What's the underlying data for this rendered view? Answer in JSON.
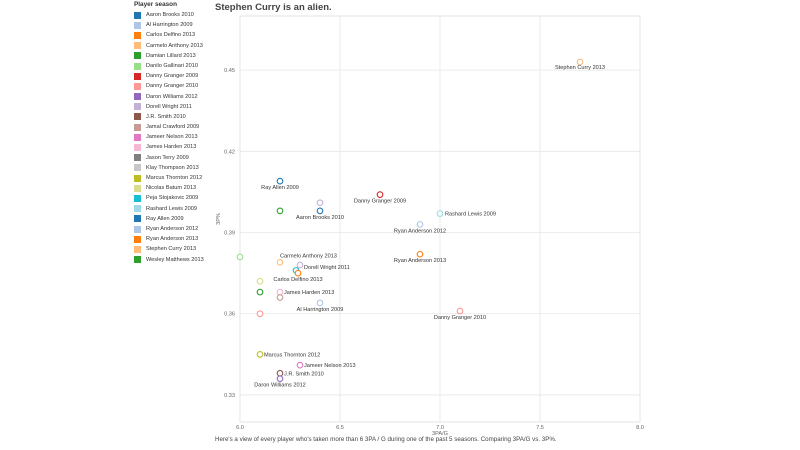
{
  "title": "Stephen Curry is an alien.",
  "caption": "Here's a view of every player who's taken more than 6 3PA / G during one of the past 5 seasons. Comparing 3PA/G vs. 3P%.",
  "legend": {
    "title": "Player season",
    "items": [
      {
        "label": "Aaron Brooks 2010",
        "color": "#1f77b4"
      },
      {
        "label": "Al Harrington 2009",
        "color": "#aec7e8"
      },
      {
        "label": "Carlos Delfino 2013",
        "color": "#ff7f0e"
      },
      {
        "label": "Carmelo Anthony 2013",
        "color": "#ffbb78"
      },
      {
        "label": "Damian Lillard 2013",
        "color": "#2ca02c"
      },
      {
        "label": "Danilo Gallinari 2010",
        "color": "#98df8a"
      },
      {
        "label": "Danny Granger 2009",
        "color": "#d62728"
      },
      {
        "label": "Danny Granger 2010",
        "color": "#ff9896"
      },
      {
        "label": "Daron Williams 2012",
        "color": "#9467bd"
      },
      {
        "label": "Dorell Wright 2011",
        "color": "#c5b0d5"
      },
      {
        "label": "J.R. Smith 2010",
        "color": "#8c564b"
      },
      {
        "label": "Jamal Crawford 2009",
        "color": "#c49c94"
      },
      {
        "label": "Jameer Nelson 2013",
        "color": "#e377c2"
      },
      {
        "label": "James Harden 2013",
        "color": "#f7b6d2"
      },
      {
        "label": "Jason Terry 2009",
        "color": "#7f7f7f"
      },
      {
        "label": "Klay Thompson 2013",
        "color": "#c7c7c7"
      },
      {
        "label": "Marcus Thornton 2012",
        "color": "#bcbd22"
      },
      {
        "label": "Nicolas Batum 2013",
        "color": "#dbdb8d"
      },
      {
        "label": "Peja Stojakovic 2009",
        "color": "#17becf"
      },
      {
        "label": "Rashard Lewis 2009",
        "color": "#9edae5"
      },
      {
        "label": "Ray Allen 2009",
        "color": "#1f77b4"
      },
      {
        "label": "Ryan Anderson 2012",
        "color": "#aec7e8"
      },
      {
        "label": "Ryan Anderson 2013",
        "color": "#ff7f0e"
      },
      {
        "label": "Stephen Curry 2013",
        "color": "#ffbb78"
      },
      {
        "label": "Wesley Matthews 2013",
        "color": "#2ca02c"
      }
    ]
  },
  "chart_data": {
    "type": "scatter",
    "title": "Stephen Curry is an alien.",
    "xlabel": "3PA/G",
    "ylabel": "3P%",
    "xlim": [
      6.0,
      8.0
    ],
    "ylim": [
      0.32,
      0.47
    ],
    "xticks": [
      6.0,
      6.5,
      7.0,
      7.5,
      8.0
    ],
    "xtick_labels": [
      "6.0",
      "6.5",
      "7.0",
      "7.5",
      "8.0"
    ],
    "yticks": [
      0.33,
      0.36,
      0.39,
      0.42,
      0.45
    ],
    "ytick_labels": [
      "0.33",
      "0.36",
      "0.39",
      "0.42",
      "0.45"
    ],
    "grid": true,
    "points": [
      {
        "name": "Stephen Curry 2013",
        "x": 7.7,
        "y": 0.453,
        "color": "#ffbb78",
        "label": "Stephen Curry 2013",
        "anchor": "middle",
        "ldx": 0,
        "ldy": 7
      },
      {
        "name": "Ray Allen 2009",
        "x": 6.2,
        "y": 0.409,
        "color": "#1f77b4",
        "label": "Ray Allen 2009",
        "anchor": "middle",
        "ldx": 0,
        "ldy": 8
      },
      {
        "name": "Danny Granger 2009",
        "x": 6.7,
        "y": 0.404,
        "color": "#d62728",
        "label": "Danny Granger 2009",
        "anchor": "middle",
        "ldx": 0,
        "ldy": 8
      },
      {
        "name": "Al Harrington 2009 (upper)",
        "x": 6.4,
        "y": 0.401,
        "color": "#c5b0d5",
        "label": "",
        "anchor": "middle",
        "ldx": 0,
        "ldy": 0
      },
      {
        "name": "Wesley Matthews 2013",
        "x": 6.2,
        "y": 0.398,
        "color": "#2ca02c",
        "label": "",
        "anchor": "middle",
        "ldx": 0,
        "ldy": 0
      },
      {
        "name": "Aaron Brooks 2010",
        "x": 6.4,
        "y": 0.398,
        "color": "#1f77b4",
        "label": "Aaron Brooks 2010",
        "anchor": "middle",
        "ldx": 0,
        "ldy": 8
      },
      {
        "name": "Rashard Lewis 2009",
        "x": 7.0,
        "y": 0.397,
        "color": "#9edae5",
        "label": "Rashard Lewis 2009",
        "anchor": "start",
        "ldx": 5,
        "ldy": 2
      },
      {
        "name": "Ryan Anderson 2012",
        "x": 6.9,
        "y": 0.393,
        "color": "#aec7e8",
        "label": "Ryan Anderson 2012",
        "anchor": "middle",
        "ldx": 0,
        "ldy": 8
      },
      {
        "name": "Danilo Gallinari 2010",
        "x": 6.0,
        "y": 0.381,
        "color": "#98df8a",
        "label": "",
        "anchor": "middle",
        "ldx": 0,
        "ldy": 0
      },
      {
        "name": "Ryan Anderson 2013",
        "x": 6.9,
        "y": 0.382,
        "color": "#ff7f0e",
        "label": "Ryan Anderson 2013",
        "anchor": "middle",
        "ldx": 0,
        "ldy": 8
      },
      {
        "name": "Carmelo Anthony 2013",
        "x": 6.2,
        "y": 0.379,
        "color": "#ffbb78",
        "label": "Carmelo Anthony 2013",
        "anchor": "start",
        "ldx": 0,
        "ldy": -5
      },
      {
        "name": "Dorell Wright 2011",
        "x": 6.3,
        "y": 0.378,
        "color": "#c5b0d5",
        "label": "Dorell Wright 2011",
        "anchor": "start",
        "ldx": 4,
        "ldy": 4
      },
      {
        "name": "Peja Stojakovic 2009",
        "x": 6.28,
        "y": 0.376,
        "color": "#17becf",
        "label": "",
        "anchor": "middle",
        "ldx": 0,
        "ldy": 0
      },
      {
        "name": "Carlos Delfino 2013",
        "x": 6.29,
        "y": 0.375,
        "color": "#ff7f0e",
        "label": "Carlos Delfino 2013",
        "anchor": "middle",
        "ldx": 0,
        "ldy": 8
      },
      {
        "name": "Nicolas Batum 2013",
        "x": 6.1,
        "y": 0.372,
        "color": "#dbdb8d",
        "label": "",
        "anchor": "middle",
        "ldx": 0,
        "ldy": 0
      },
      {
        "name": "Damian Lillard 2013",
        "x": 6.1,
        "y": 0.368,
        "color": "#2ca02c",
        "label": "",
        "anchor": "middle",
        "ldx": 0,
        "ldy": 0
      },
      {
        "name": "James Harden 2013",
        "x": 6.2,
        "y": 0.368,
        "color": "#f7b6d2",
        "label": "James Harden 2013",
        "anchor": "start",
        "ldx": 4,
        "ldy": 2
      },
      {
        "name": "Jamal Crawford 2009",
        "x": 6.2,
        "y": 0.366,
        "color": "#c49c94",
        "label": "",
        "anchor": "middle",
        "ldx": 0,
        "ldy": 0
      },
      {
        "name": "Al Harrington 2009",
        "x": 6.4,
        "y": 0.364,
        "color": "#aec7e8",
        "label": "Al Harrington 2009",
        "anchor": "middle",
        "ldx": 0,
        "ldy": 8
      },
      {
        "name": "Danny Granger 2010",
        "x": 7.1,
        "y": 0.361,
        "color": "#ff9896",
        "label": "Danny Granger 2010",
        "anchor": "middle",
        "ldx": 0,
        "ldy": 8
      },
      {
        "name": "Klay Thompson 2013",
        "x": 6.1,
        "y": 0.36,
        "color": "#ff9896",
        "label": "",
        "anchor": "middle",
        "ldx": 0,
        "ldy": 0
      },
      {
        "name": "Marcus Thornton 2012",
        "x": 6.1,
        "y": 0.345,
        "color": "#bcbd22",
        "label": "Marcus Thornton 2012",
        "anchor": "start",
        "ldx": 4,
        "ldy": 2
      },
      {
        "name": "Jameer Nelson 2013",
        "x": 6.3,
        "y": 0.341,
        "color": "#e377c2",
        "label": "Jameer Nelson 2013",
        "anchor": "start",
        "ldx": 4,
        "ldy": 2
      },
      {
        "name": "J.R. Smith 2010",
        "x": 6.2,
        "y": 0.338,
        "color": "#8c564b",
        "label": "J.R. Smith 2010",
        "anchor": "start",
        "ldx": 4,
        "ldy": 2
      },
      {
        "name": "Daron Williams 2012",
        "x": 6.2,
        "y": 0.336,
        "color": "#9467bd",
        "label": "Daron Williams 2012",
        "anchor": "middle",
        "ldx": 0,
        "ldy": 8
      }
    ]
  }
}
